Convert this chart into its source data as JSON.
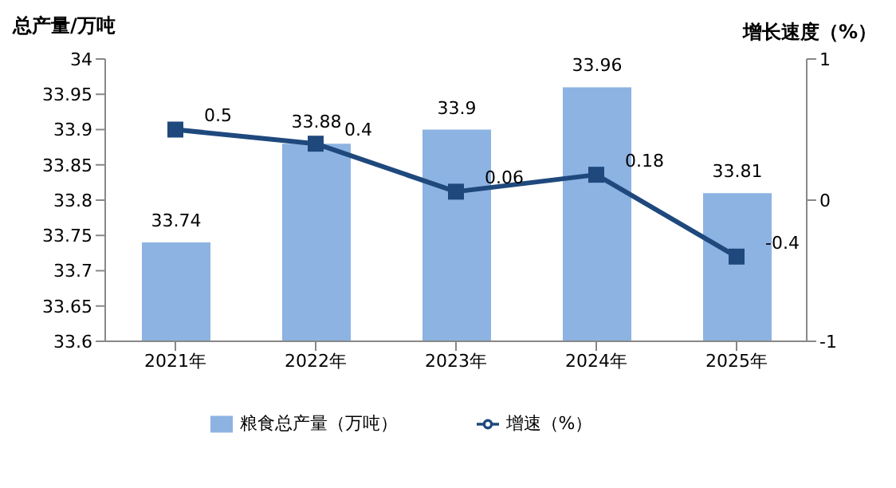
{
  "chart_data": {
    "type": "bar",
    "categories": [
      "2021年",
      "2022年",
      "2023年",
      "2024年",
      "2025年"
    ],
    "ylabel": "总产量/万吨",
    "y2label": "增长速度（%）",
    "series": [
      {
        "name": "粮食总产量（万吨）",
        "color": "#8db3e2",
        "values": [
          33.74,
          33.88,
          33.9,
          33.96,
          33.81
        ]
      },
      {
        "name": "增速（%）",
        "type": "line",
        "axis": "y2",
        "color": "#1f497d",
        "marker": "square",
        "values": [
          0.5,
          0.4,
          0.06,
          0.18,
          -0.4
        ]
      }
    ],
    "ylim": [
      33.6,
      34
    ],
    "yticks": [
      33.6,
      33.65,
      33.7,
      33.75,
      33.8,
      33.85,
      33.9,
      33.95,
      34
    ],
    "y2lim": [
      -1,
      1
    ],
    "y2ticks": [
      -1,
      0,
      1
    ],
    "data_labels": true,
    "legend": "bottom"
  }
}
